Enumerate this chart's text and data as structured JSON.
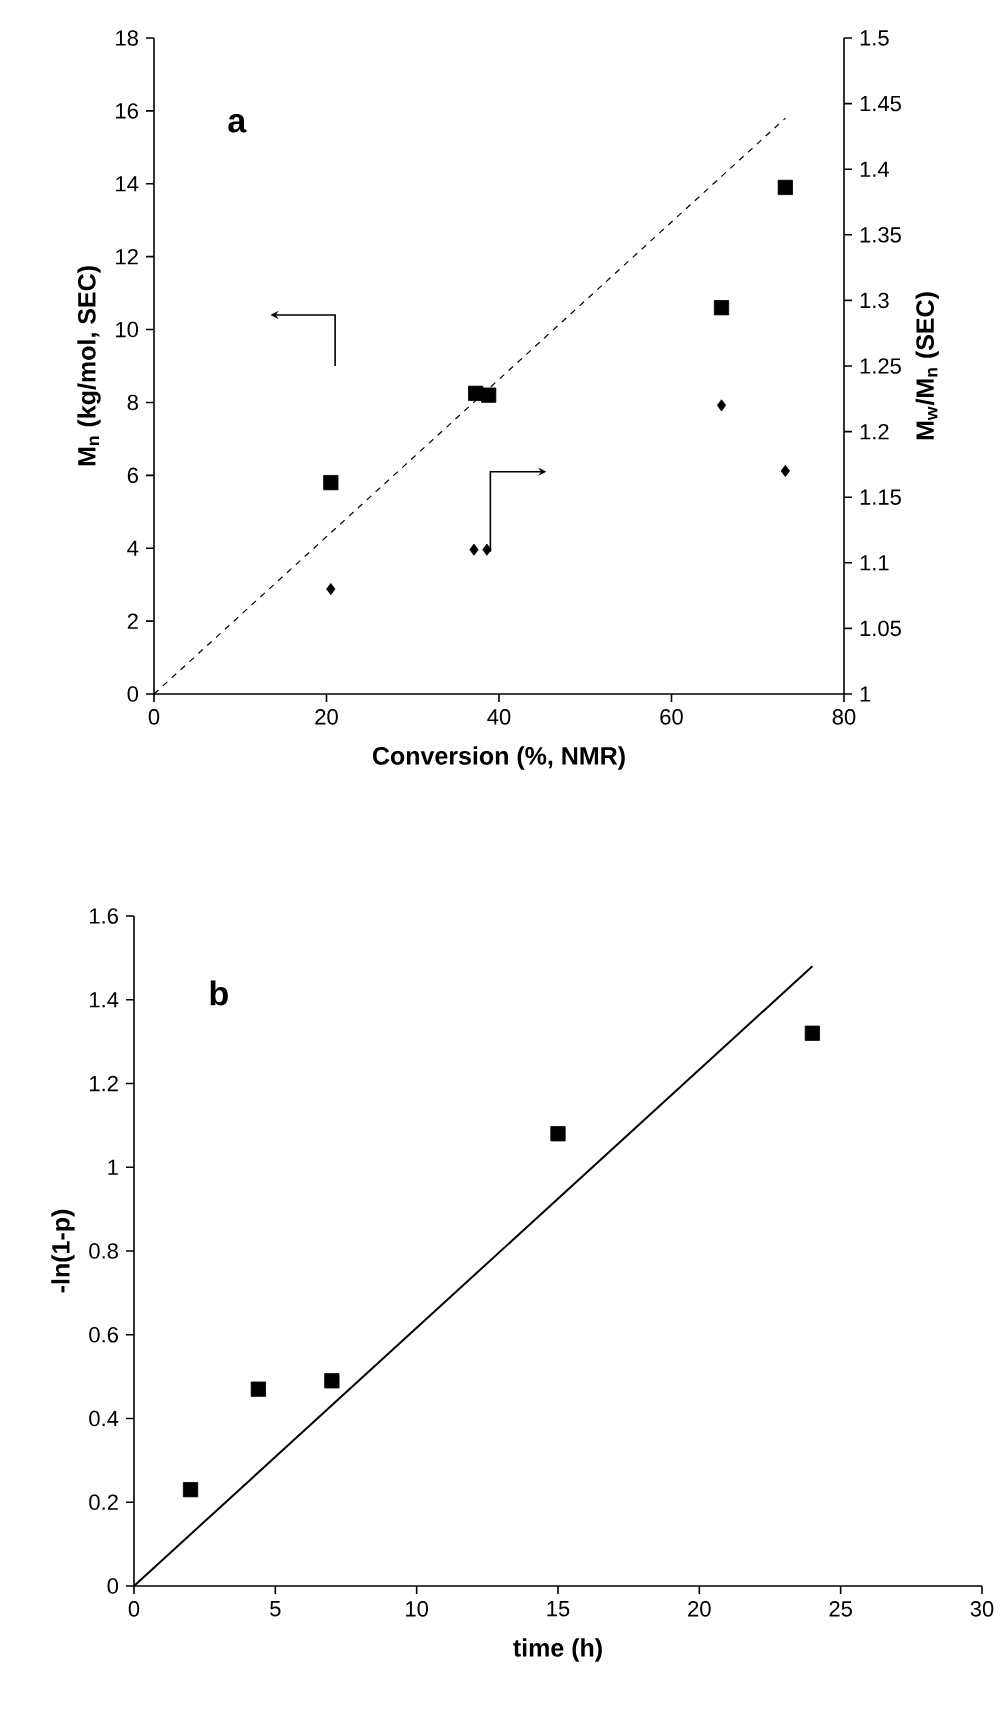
{
  "chart_data": [
    {
      "type": "scatter",
      "xlabel": "Conversion (%, NMR)",
      "ylabel": "M$_{n}$ (kg/mol, SEC)",
      "y2label": "M$_{w}$/M$_{n}$ (SEC)",
      "annotations": [
        "a"
      ],
      "xlim": [
        0,
        80
      ],
      "xticks": [
        0,
        20,
        40,
        60,
        80
      ],
      "ylim": [
        0,
        18
      ],
      "yticks": [
        0,
        2,
        4,
        6,
        8,
        10,
        12,
        14,
        16,
        18
      ],
      "y2lim": [
        1,
        1.5
      ],
      "y2ticks": [
        1,
        1.05,
        1.1,
        1.15,
        1.2,
        1.25,
        1.3,
        1.35,
        1.4,
        1.45,
        1.5
      ],
      "series": [
        {
          "marker": "square",
          "color": "#000000",
          "x": [
            20.5,
            37.3,
            38.8,
            65.8,
            73.2
          ],
          "values": [
            5.8,
            8.25,
            8.2,
            10.6,
            13.9
          ]
        },
        {
          "marker": "diamond",
          "axis": "y2",
          "color": "#000000",
          "x": [
            20.5,
            37.1,
            38.6,
            65.8,
            73.2
          ],
          "values": [
            1.08,
            1.11,
            1.11,
            1.22,
            1.17
          ]
        },
        {
          "type": "line",
          "line_style": "dashed",
          "color": "#000000",
          "x": [
            0,
            73.2
          ],
          "values": [
            0,
            15.8
          ]
        }
      ]
    },
    {
      "type": "scatter",
      "xlabel": "time (h)",
      "ylabel": "-ln(1-p)",
      "annotations": [
        "b"
      ],
      "xlim": [
        0,
        30
      ],
      "xticks": [
        0,
        5,
        10,
        15,
        20,
        25,
        30
      ],
      "ylim": [
        0,
        1.6
      ],
      "yticks": [
        0,
        0.2,
        0.4,
        0.6,
        0.8,
        1,
        1.2,
        1.4,
        1.6
      ],
      "series": [
        {
          "marker": "square",
          "color": "#000000",
          "x": [
            2,
            4.4,
            7,
            15,
            24
          ],
          "values": [
            0.23,
            0.47,
            0.49,
            1.08,
            1.32
          ]
        },
        {
          "type": "line",
          "line_style": "solid",
          "color": "#000000",
          "x": [
            0,
            24
          ],
          "values": [
            0,
            1.48
          ]
        }
      ]
    }
  ]
}
